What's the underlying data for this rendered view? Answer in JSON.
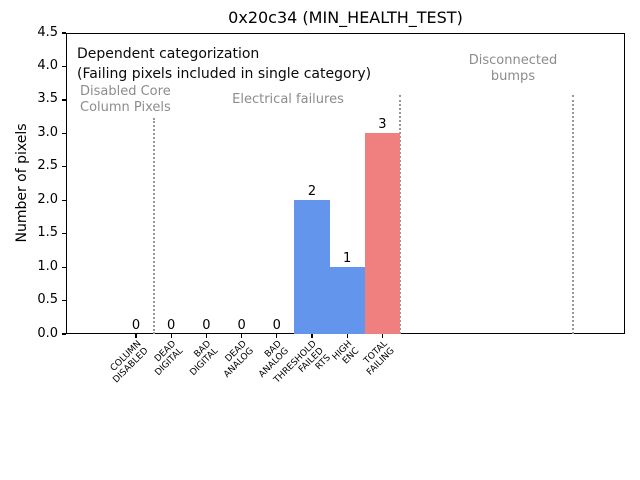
{
  "chart_data": {
    "type": "bar",
    "title": "0x20c34 (MIN_HEALTH_TEST)",
    "xlabel": "",
    "ylabel": "Number of pixels",
    "ylim": [
      0,
      4.5
    ],
    "ytick_step": 0.5,
    "grid": false,
    "legend": null,
    "categories": [
      "COLUMN\nDISABLED",
      "DEAD\nDIGITAL",
      "BAD\nDIGITAL",
      "DEAD\nANALOG",
      "BAD\nANALOG",
      "THRESHOLD\nFAILED\nRTS",
      "HIGH\nENC",
      "TOTAL\nFAILING"
    ],
    "values": [
      0,
      0,
      0,
      0,
      0,
      2,
      1,
      3
    ],
    "value_labels": [
      "0",
      "0",
      "0",
      "0",
      "0",
      "2",
      "1",
      "3"
    ],
    "bar_colors": [
      null,
      null,
      null,
      null,
      null,
      "#6495ED",
      "#6495ED",
      "#F08080"
    ],
    "annotations": {
      "line1": "Dependent categorization",
      "line2": "(Failing pixels included in single category)"
    },
    "sections": [
      {
        "label": "Disabled Core\nColumn Pixels"
      },
      {
        "label": "Electrical failures"
      },
      {
        "label": "Disconnected\nbumps"
      }
    ],
    "colors": {
      "bar_blue": "#6495ED",
      "bar_red": "#F08080",
      "section_text": "#8c8c8c",
      "separator": "#999999",
      "axis": "#000000",
      "background": "#ffffff"
    }
  }
}
